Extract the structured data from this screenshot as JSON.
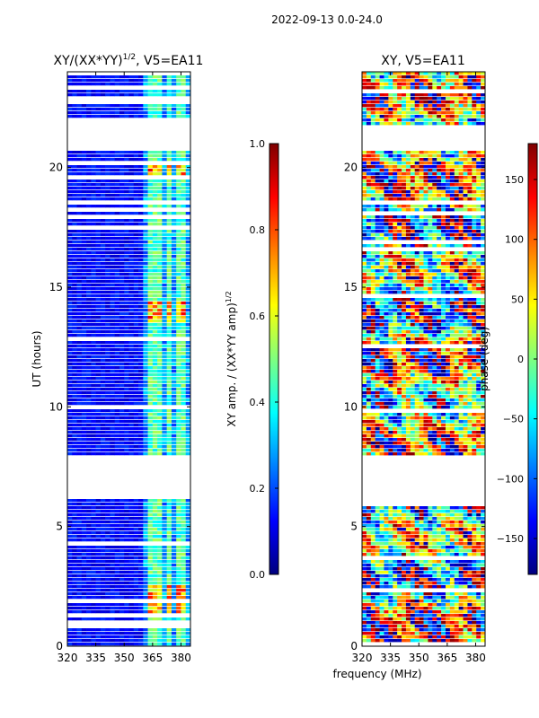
{
  "suptitle": "2022-09-13 0.0-24.0",
  "xlabel": "frequency (MHz)",
  "ylabel": "UT (hours)",
  "colors": {
    "jet": [
      "#00007f",
      "#0000ff",
      "#007fff",
      "#00ffff",
      "#7fff7f",
      "#ffff00",
      "#ff7f00",
      "#ff0000",
      "#7f0000"
    ]
  },
  "chart_data": [
    {
      "type": "heatmap",
      "title_base": "XY/(XX*YY)",
      "title_sup": "1/2",
      "title_tail": ", V5=EA11",
      "x_range": [
        320,
        385
      ],
      "y_range": [
        0,
        24
      ],
      "xticks": [
        "320",
        "335",
        "350",
        "365",
        "380"
      ],
      "xtick_values": [
        320,
        335,
        350,
        365,
        380
      ],
      "yticks": [
        "0",
        "5",
        "10",
        "15",
        "20"
      ],
      "ytick_values": [
        0,
        5,
        10,
        15,
        20
      ],
      "colorbar": {
        "label_base": "XY amp. / (XX*YY amp)",
        "label_sup": "1/2",
        "range": [
          0.0,
          1.0
        ],
        "ticks": [
          "0.0",
          "0.2",
          "0.4",
          "0.6",
          "0.8",
          "1.0"
        ],
        "tick_values": [
          0.0,
          0.2,
          0.4,
          0.6,
          0.8,
          1.0
        ]
      },
      "missing_ut_ranges": [
        [
          6.15,
          7.95
        ],
        [
          20.7,
          21.85
        ]
      ],
      "bright_channels_mhz": [
        [
          362,
          365
        ],
        [
          365,
          368
        ],
        [
          368,
          371
        ],
        [
          372,
          374
        ],
        [
          377,
          380
        ],
        [
          381,
          383
        ]
      ]
    },
    {
      "type": "heatmap",
      "title": "XY, V5=EA11",
      "x_range": [
        320,
        385
      ],
      "y_range": [
        0,
        24
      ],
      "xticks": [
        "320",
        "335",
        "350",
        "365",
        "380"
      ],
      "xtick_values": [
        320,
        335,
        350,
        365,
        380
      ],
      "yticks": [
        "0",
        "5",
        "10",
        "15",
        "20"
      ],
      "ytick_values": [
        0,
        5,
        10,
        15,
        20
      ],
      "colorbar": {
        "label": "phase (deg)",
        "range": [
          -180,
          180
        ],
        "ticks": [
          "−150",
          "−100",
          "−50",
          "0",
          "50",
          "100",
          "150"
        ],
        "tick_values": [
          -150,
          -100,
          -50,
          0,
          50,
          100,
          150
        ]
      },
      "missing_ut_ranges": [
        [
          6.05,
          7.95
        ],
        [
          20.7,
          21.7
        ]
      ]
    }
  ]
}
